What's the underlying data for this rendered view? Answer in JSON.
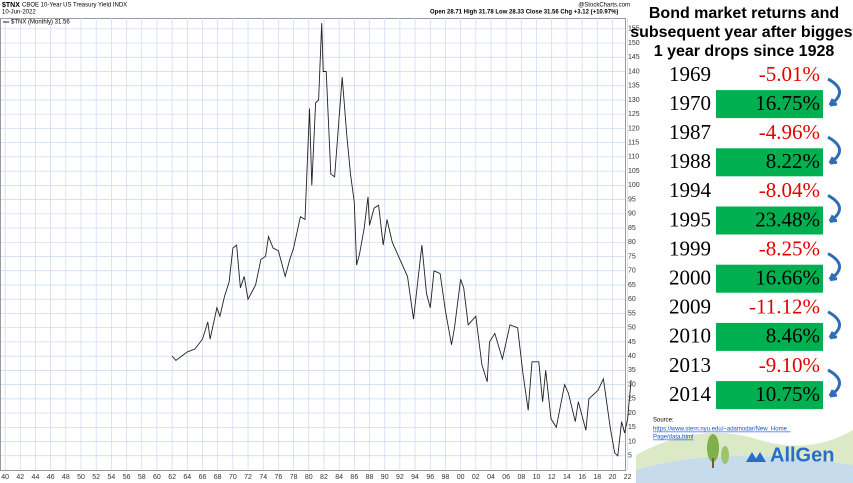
{
  "chart_data": {
    "type": "line",
    "title": "$TNX",
    "subtitle": "CBOE 10-Year US Treasury Yield INDX",
    "date": "10-Jun-2022",
    "quote": "Open 28.71 High 31.78 Low 28.33 Close 31.56 Chg +3.12 (+10.97%)",
    "credit": "@StockCharts.com",
    "x": [
      1962,
      1962.5,
      1963,
      1964,
      1965,
      1966,
      1966.7,
      1967,
      1967.9,
      1968.3,
      1968.9,
      1969.5,
      1970,
      1970.5,
      1971,
      1971.5,
      1972,
      1973,
      1973.7,
      1974.3,
      1974.7,
      1975.3,
      1976,
      1976.9,
      1977.5,
      1978,
      1978.9,
      1979.5,
      1980.1,
      1980.4,
      1980.9,
      1981.3,
      1981.7,
      1981.9,
      1982.3,
      1982.9,
      1983.4,
      1984.4,
      1985,
      1985.5,
      1986,
      1986.3,
      1986.7,
      1987.3,
      1987.8,
      1988,
      1988.6,
      1989.2,
      1989.8,
      1990.3,
      1991,
      1992,
      1993,
      1993.8,
      1994.9,
      1995.5,
      1996,
      1996.5,
      1997.3,
      1998,
      1998.8,
      1999.2,
      2000,
      2000.4,
      2001,
      2002,
      2002.8,
      2003.5,
      2003.8,
      2004.5,
      2005.5,
      2006.5,
      2007.5,
      2008.2,
      2008.9,
      2009.4,
      2010.3,
      2010.8,
      2011.2,
      2011.9,
      2012.6,
      2013.7,
      2014.2,
      2015.1,
      2015.5,
      2016.5,
      2016.9,
      2018.1,
      2018.8,
      2019.7,
      2020.3,
      2020.7,
      2021.2,
      2021.6,
      2022,
      2022.45
    ],
    "series": [
      {
        "name": "$TNX (Monthly) 31.56",
        "color": "#222222",
        "values": [
          40,
          38.5,
          39.5,
          41.5,
          42.5,
          46,
          52,
          46,
          57,
          54,
          61,
          66,
          78,
          79,
          64,
          68,
          60,
          65,
          74,
          75,
          82,
          78,
          77,
          68,
          74,
          78,
          89,
          88,
          127,
          100,
          129,
          130,
          157,
          140,
          140,
          104,
          103,
          138,
          118,
          104,
          94,
          72,
          76,
          85,
          96,
          86,
          92,
          93,
          79,
          88,
          80,
          74,
          68,
          53,
          79,
          62,
          57,
          70,
          69,
          56,
          44,
          50,
          67,
          64,
          51,
          54,
          37,
          31,
          45,
          48,
          39,
          51,
          50,
          34,
          21,
          38,
          38,
          24,
          35,
          18,
          15,
          30,
          27,
          17,
          24,
          14,
          25,
          28,
          32,
          15,
          6,
          5,
          17,
          13,
          18,
          31.56
        ]
      }
    ],
    "xlim": [
      1939.33,
      2023.1
    ],
    "ylim": [
      0,
      158.8
    ],
    "xticks": [
      {
        "value": 1940,
        "label": "40"
      },
      {
        "value": 1942,
        "label": "42"
      },
      {
        "value": 1944,
        "label": "44"
      },
      {
        "value": 1946,
        "label": "46"
      },
      {
        "value": 1948,
        "label": "48"
      },
      {
        "value": 1950,
        "label": "50"
      },
      {
        "value": 1952,
        "label": "52"
      },
      {
        "value": 1954,
        "label": "54"
      },
      {
        "value": 1956,
        "label": "56"
      },
      {
        "value": 1958,
        "label": "58"
      },
      {
        "value": 1960,
        "label": "60"
      },
      {
        "value": 1962,
        "label": "62"
      },
      {
        "value": 1964,
        "label": "64"
      },
      {
        "value": 1966,
        "label": "66"
      },
      {
        "value": 1968,
        "label": "68"
      },
      {
        "value": 1970,
        "label": "70"
      },
      {
        "value": 1972,
        "label": "72"
      },
      {
        "value": 1974,
        "label": "74"
      },
      {
        "value": 1976,
        "label": "76"
      },
      {
        "value": 1978,
        "label": "78"
      },
      {
        "value": 1980,
        "label": "80"
      },
      {
        "value": 1982,
        "label": "82"
      },
      {
        "value": 1984,
        "label": "84"
      },
      {
        "value": 1986,
        "label": "86"
      },
      {
        "value": 1988,
        "label": "88"
      },
      {
        "value": 1990,
        "label": "90"
      },
      {
        "value": 1992,
        "label": "92"
      },
      {
        "value": 1994,
        "label": "94"
      },
      {
        "value": 1996,
        "label": "96"
      },
      {
        "value": 1998,
        "label": "98"
      },
      {
        "value": 2000,
        "label": "00"
      },
      {
        "value": 2002,
        "label": "02"
      },
      {
        "value": 2004,
        "label": "04"
      },
      {
        "value": 2006,
        "label": "06"
      },
      {
        "value": 2008,
        "label": "08"
      },
      {
        "value": 2010,
        "label": "10"
      },
      {
        "value": 2012,
        "label": "12"
      },
      {
        "value": 2014,
        "label": "14"
      },
      {
        "value": 2016,
        "label": "16"
      },
      {
        "value": 2018,
        "label": "18"
      },
      {
        "value": 2020,
        "label": "20"
      },
      {
        "value": 2022,
        "label": "22"
      }
    ],
    "yticks": [
      5,
      10,
      15,
      20,
      25,
      30,
      35,
      40,
      45,
      50,
      55,
      60,
      65,
      70,
      75,
      80,
      85,
      90,
      95,
      100,
      105,
      110,
      115,
      120,
      125,
      130,
      135,
      140,
      145,
      150,
      155
    ],
    "grid": true
  },
  "table": {
    "title": [
      "Bond market returns and",
      "subsequent year after biggest",
      "1 year drops since 1928"
    ],
    "rows": [
      [
        "1969",
        "-5.01%"
      ],
      [
        "1970",
        "16.75%"
      ],
      [
        "1987",
        "-4.96%"
      ],
      [
        "1988",
        "8.22%"
      ],
      [
        "1994",
        "-8.04%"
      ],
      [
        "1995",
        "23.48%"
      ],
      [
        "1999",
        "-8.25%"
      ],
      [
        "2000",
        "16.66%"
      ],
      [
        "2009",
        "-11.12%"
      ],
      [
        "2010",
        "8.46%"
      ],
      [
        "2013",
        "-9.10%"
      ],
      [
        "2014",
        "10.75%"
      ]
    ]
  },
  "source": {
    "label": "Source:",
    "link": [
      "https://www.stern.nyu.edu/~adamodar/New_Home_",
      "Page/data.html"
    ]
  },
  "logo": "AllGen"
}
